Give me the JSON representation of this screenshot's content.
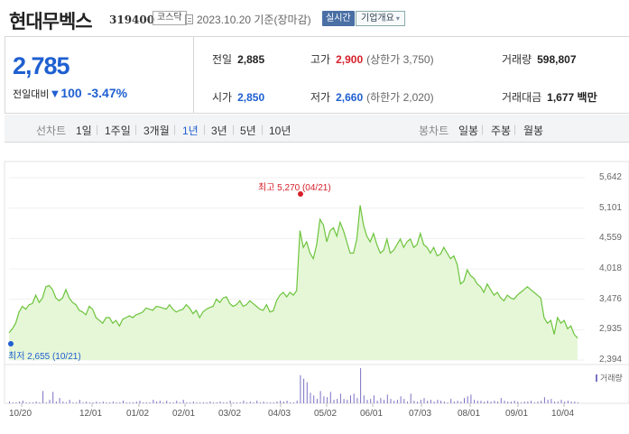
{
  "header": {
    "title": "현대무벡스",
    "code": "319400",
    "market": "코스닥",
    "date": "2023.10.20",
    "date_suffix": "기준(장마감)",
    "realtime_label": "실시간",
    "company_info_label": "기업개요"
  },
  "quote": {
    "price": "2,785",
    "change_label": "전일대비",
    "change_value": "100",
    "change_pct": "-3.47%",
    "prev_close": {
      "label": "전일",
      "value": "2,885"
    },
    "high": {
      "label": "고가",
      "value": "2,900",
      "sub": "(상한가 3,750)"
    },
    "volume": {
      "label": "거래량",
      "value": "598,807"
    },
    "open": {
      "label": "시가",
      "value": "2,850"
    },
    "low": {
      "label": "저가",
      "value": "2,660",
      "sub": "(하한가 2,020)"
    },
    "amount": {
      "label": "거래대금",
      "value": "1,677",
      "unit": "백만"
    }
  },
  "tabs": {
    "line_label": "선차트",
    "periods": [
      "1일",
      "1주일",
      "3개월",
      "1년",
      "3년",
      "5년",
      "10년"
    ],
    "selected": "1년",
    "candle_label": "봉차트",
    "candles": [
      "일봉",
      "주봉",
      "월봉"
    ]
  },
  "colors": {
    "line": "#6cc43c",
    "fill": "#e6f7d8",
    "volume": "#7b72c4",
    "up": "#d6202a",
    "down": "#1f5fd1"
  },
  "chart_data": {
    "type": "area",
    "ylabel": "",
    "y_ticks": [
      "5,642",
      "5,101",
      "4,559",
      "4,018",
      "3,476",
      "2,935",
      "2,394"
    ],
    "x_ticks": [
      "10/20",
      "12/01",
      "01/02",
      "02/01",
      "03/02",
      "04/03",
      "05/02",
      "06/01",
      "07/03",
      "08/01",
      "09/01",
      "10/04"
    ],
    "ylim": [
      2394,
      5642
    ],
    "high_annotation": "최고 5,270 (04/21)",
    "low_annotation": "최저 2,655 (10/21)",
    "volume_legend": "거래량",
    "series": [
      {
        "values": [
          2880,
          2950,
          3050,
          3250,
          3350,
          3300,
          3380,
          3400,
          3550,
          3420,
          3500,
          3700,
          3720,
          3650,
          3500,
          3450,
          3500,
          3650,
          3500,
          3420,
          3380,
          3280,
          3250,
          3200,
          3350,
          3300,
          3150,
          3100,
          3050,
          3150,
          3150,
          3050,
          3100,
          3000,
          3120,
          3150,
          3180,
          3150,
          3200,
          3220,
          3250,
          3320,
          3300,
          3280,
          3350,
          3340,
          3320,
          3300,
          3380,
          3300,
          3250,
          3280,
          3300,
          3380,
          3320,
          3220,
          3280,
          3150,
          3250,
          3300,
          3330,
          3350,
          3480,
          3420,
          3500,
          3520,
          3400,
          3350,
          3380,
          3450,
          3350,
          3380,
          3450,
          3400,
          3350,
          3300,
          3280,
          3380,
          3250,
          3270,
          3450,
          3550,
          3600,
          3520,
          3600,
          3550,
          3630,
          4700,
          4400,
          4500,
          4300,
          4200,
          4450,
          4900,
          4800,
          4500,
          4700,
          4750,
          4600,
          4850,
          4700,
          4500,
          4300,
          4300,
          4550,
          5150,
          4800,
          4600,
          4500,
          4650,
          4450,
          4300,
          4350,
          4550,
          4300,
          4350,
          4450,
          4550,
          4400,
          4500,
          4550,
          4400,
          4450,
          4650,
          4450,
          4400,
          4300,
          4400,
          4250,
          4280,
          4400,
          4300,
          4200,
          4250,
          4100,
          3750,
          3800,
          4000,
          3900,
          3850,
          3750,
          3700,
          3600,
          3750,
          3650,
          3550,
          3600,
          3500,
          3450,
          3550,
          3500,
          3480,
          3550,
          3600,
          3650,
          3700,
          3650,
          3600,
          3550,
          3500,
          3150,
          3050,
          3100,
          2850,
          3150,
          3050,
          3100,
          2950,
          3000,
          2850,
          2785
        ]
      },
      {
        "name": "거래량",
        "values": [
          2,
          1,
          1,
          2,
          3,
          1,
          1,
          1,
          2,
          1,
          14,
          1,
          4,
          13,
          2,
          6,
          2,
          1,
          4,
          1,
          1,
          4,
          1,
          2,
          1,
          1,
          2,
          1,
          2,
          1,
          1,
          2,
          1,
          1,
          3,
          1,
          1,
          1,
          2,
          3,
          1,
          1,
          1,
          4,
          2,
          3,
          1,
          3,
          1,
          1,
          3,
          1,
          4,
          1,
          1,
          2,
          1,
          1,
          1,
          1,
          2,
          1,
          1,
          2,
          1,
          1,
          3,
          1,
          1,
          1,
          3,
          1,
          2,
          1,
          3,
          1,
          2,
          1,
          1,
          1,
          2,
          3,
          2,
          3,
          1,
          1,
          3,
          32,
          28,
          24,
          12,
          9,
          5,
          14,
          8,
          7,
          13,
          4,
          5,
          11,
          5,
          4,
          9,
          11,
          6,
          40,
          9,
          4,
          5,
          9,
          3,
          6,
          4,
          10,
          5,
          3,
          4,
          8,
          5,
          2,
          11,
          3,
          2,
          4,
          6,
          3,
          4,
          2,
          4,
          3,
          2,
          1,
          5,
          2,
          3,
          2,
          6,
          8,
          10,
          4,
          3,
          3,
          2,
          3,
          2,
          3,
          2,
          6,
          3,
          2,
          2,
          3,
          2,
          1,
          2,
          2,
          3,
          1,
          2,
          3,
          7,
          4,
          5,
          2,
          2,
          4,
          2,
          3,
          2,
          2,
          1
        ]
      }
    ]
  }
}
